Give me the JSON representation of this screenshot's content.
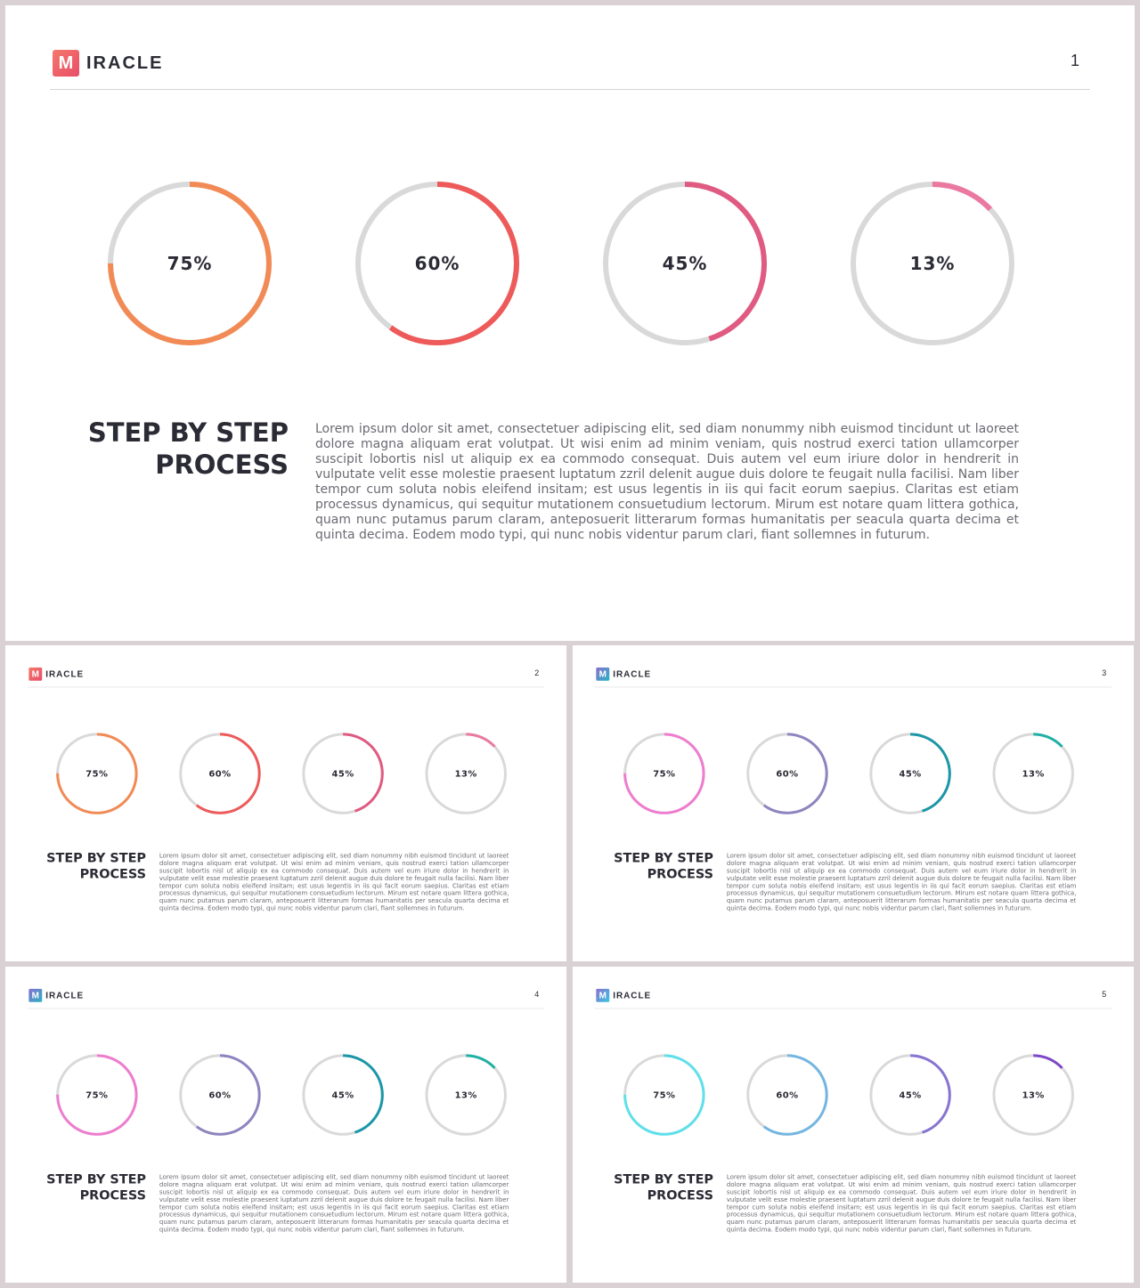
{
  "brand": {
    "logo_letter": "M",
    "logo_text": "IRACLE"
  },
  "content": {
    "heading_line1": "STEP BY STEP",
    "heading_line2": "PROCESS",
    "body": "Lorem ipsum dolor sit amet, consectetuer adipiscing elit, sed diam nonummy nibh euismod tincidunt ut laoreet dolore magna aliquam erat volutpat. Ut wisi enim ad minim veniam, quis nostrud exerci tation ullamcorper suscipit lobortis nisl ut aliquip ex ea commodo consequat. Duis autem vel eum iriure dolor in hendrerit in vulputate velit esse molestie praesent luptatum zzril delenit augue duis dolore te feugait nulla facilisi. Nam liber tempor cum soluta nobis eleifend insitam; est usus legentis in iis qui facit eorum saepius. Claritas est etiam processus dynamicus, qui sequitur mutationem consuetudium lectorum. Mirum est notare quam littera gothica, quam nunc putamus parum claram, anteposuerit litterarum formas humanitatis per seacula quarta decima et quinta decima. Eodem modo typi, qui nunc nobis videntur parum clari, fiant sollemnes in futurum."
  },
  "track_color": "#d9d9d9",
  "chart_data": [
    {
      "type": "pie",
      "page": "1",
      "logo_colors": [
        "#f4796b",
        "#e84d6a"
      ],
      "labels": [
        "75%",
        "60%",
        "45%",
        "13%"
      ],
      "values": [
        75,
        60,
        45,
        13
      ],
      "colors": [
        "#f28a55",
        "#ee5a5a",
        "#e05a82",
        "#ea78a0"
      ]
    },
    {
      "type": "pie",
      "page": "2",
      "logo_colors": [
        "#f4796b",
        "#e84d6a"
      ],
      "labels": [
        "75%",
        "60%",
        "45%",
        "13%"
      ],
      "values": [
        75,
        60,
        45,
        13
      ],
      "colors": [
        "#f28a55",
        "#ee5a5a",
        "#e05a82",
        "#ea78a0"
      ]
    },
    {
      "type": "pie",
      "page": "3",
      "logo_colors": [
        "#8a6fd0",
        "#27b3c4"
      ],
      "labels": [
        "75%",
        "60%",
        "45%",
        "13%"
      ],
      "values": [
        75,
        60,
        45,
        13
      ],
      "colors": [
        "#ee7ccf",
        "#8e84c0",
        "#1b97a8",
        "#1fb0a6"
      ]
    },
    {
      "type": "pie",
      "page": "4",
      "logo_colors": [
        "#8a6fd0",
        "#27b3c4"
      ],
      "labels": [
        "75%",
        "60%",
        "45%",
        "13%"
      ],
      "values": [
        75,
        60,
        45,
        13
      ],
      "colors": [
        "#ee7ccf",
        "#8e84c0",
        "#1b97a8",
        "#1fb0a6"
      ]
    },
    {
      "type": "pie",
      "page": "5",
      "logo_colors": [
        "#8a6fd0",
        "#38c6e0"
      ],
      "labels": [
        "75%",
        "60%",
        "45%",
        "13%"
      ],
      "values": [
        75,
        60,
        45,
        13
      ],
      "colors": [
        "#5fe0ea",
        "#74b6e2",
        "#8874d2",
        "#7e48c8"
      ]
    }
  ]
}
